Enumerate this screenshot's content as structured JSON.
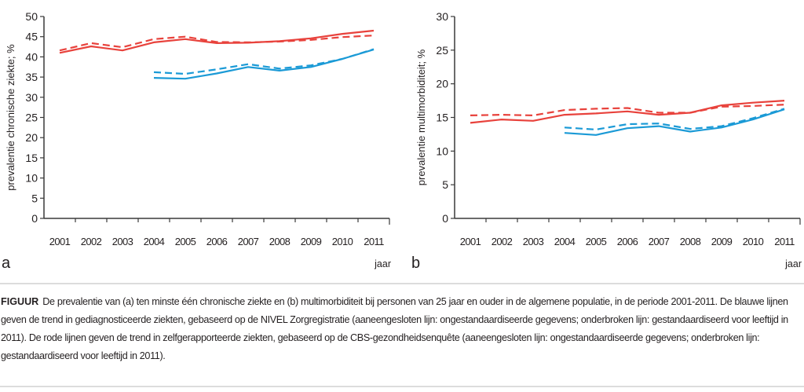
{
  "figure": {
    "caption_label": "FIGUUR",
    "caption_text": "De prevalentie van (a) ten minste één chronische ziekte en (b) multimorbiditeit bij personen van 25 jaar en ouder in de algemene populatie, in de periode 2001-2011. De blauwe lijnen geven de trend in gediagnosticeerde ziekten, gebaseerd op de NIVEL Zorgregistratie (aaneengesloten lijn: ongestandaardiseerde gegevens; onderbroken lijn: gestandaardiseerd voor leeftijd in 2011). De rode lijnen geven de trend in zelfgerapporteerde ziekten, gebaseerd op de CBS-gezondheidsenquête (aaneengesloten lijn: ongestandaardiseerde gegevens; onderbroken lijn: gestandaardiseerd voor leeftijd in 2011)."
  },
  "colors": {
    "red": "#e8423c",
    "blue": "#1b9ad6",
    "axis": "#3a3a3a"
  },
  "chart_data": [
    {
      "type": "line",
      "panel_label": "a",
      "title": "",
      "xlabel": "jaar",
      "ylabel": "prevalentie chronische ziekte; %",
      "categories": [
        "2001",
        "2002",
        "2003",
        "2004",
        "2005",
        "2006",
        "2007",
        "2008",
        "2009",
        "2010",
        "2011"
      ],
      "ylim": [
        0,
        50
      ],
      "yticks": [
        0,
        5,
        10,
        15,
        20,
        25,
        30,
        35,
        40,
        45,
        50
      ],
      "grid": false,
      "series": [
        {
          "name": "zelfgerapporteerd (CBS), ongestandaardiseerd",
          "color": "red",
          "dash": false,
          "values": [
            41.0,
            42.6,
            41.6,
            43.6,
            44.4,
            43.4,
            43.5,
            43.9,
            44.6,
            45.7,
            46.5
          ]
        },
        {
          "name": "zelfgerapporteerd (CBS), gestandaardiseerd",
          "color": "red",
          "dash": true,
          "values": [
            41.6,
            43.4,
            42.4,
            44.4,
            45.0,
            43.7,
            43.6,
            43.8,
            44.2,
            44.9,
            45.3
          ]
        },
        {
          "name": "gediagnosticeerd (NIVEL), ongestandaardiseerd",
          "color": "blue",
          "dash": false,
          "values": [
            null,
            null,
            null,
            34.8,
            34.6,
            35.9,
            37.5,
            36.6,
            37.5,
            39.5,
            41.8
          ]
        },
        {
          "name": "gediagnosticeerd (NIVEL), gestandaardiseerd",
          "color": "blue",
          "dash": true,
          "values": [
            null,
            null,
            null,
            36.2,
            35.8,
            36.9,
            38.2,
            37.1,
            37.9,
            39.5,
            41.9
          ]
        }
      ]
    },
    {
      "type": "line",
      "panel_label": "b",
      "title": "",
      "xlabel": "jaar",
      "ylabel": "prevalentie multimorbiditeit; %",
      "categories": [
        "2001",
        "2002",
        "2003",
        "2004",
        "2005",
        "2006",
        "2007",
        "2008",
        "2009",
        "2010",
        "2011"
      ],
      "ylim": [
        0,
        30
      ],
      "yticks": [
        0,
        5,
        10,
        15,
        20,
        25,
        30
      ],
      "grid": false,
      "series": [
        {
          "name": "zelfgerapporteerd (CBS), ongestandaardiseerd",
          "color": "red",
          "dash": false,
          "values": [
            14.2,
            14.7,
            14.5,
            15.4,
            15.6,
            15.9,
            15.4,
            15.7,
            16.8,
            17.2,
            17.5
          ]
        },
        {
          "name": "zelfgerapporteerd (CBS), gestandaardiseerd",
          "color": "red",
          "dash": true,
          "values": [
            15.3,
            15.4,
            15.3,
            16.1,
            16.3,
            16.4,
            15.7,
            15.7,
            16.6,
            16.7,
            16.9
          ]
        },
        {
          "name": "gediagnosticeerd (NIVEL), ongestandaardiseerd",
          "color": "blue",
          "dash": false,
          "values": [
            null,
            null,
            null,
            12.7,
            12.4,
            13.4,
            13.7,
            12.9,
            13.5,
            14.7,
            16.2
          ]
        },
        {
          "name": "gediagnosticeerd (NIVEL), gestandaardiseerd",
          "color": "blue",
          "dash": true,
          "values": [
            null,
            null,
            null,
            13.5,
            13.2,
            14.0,
            14.1,
            13.3,
            13.7,
            14.9,
            16.3
          ]
        }
      ]
    }
  ]
}
